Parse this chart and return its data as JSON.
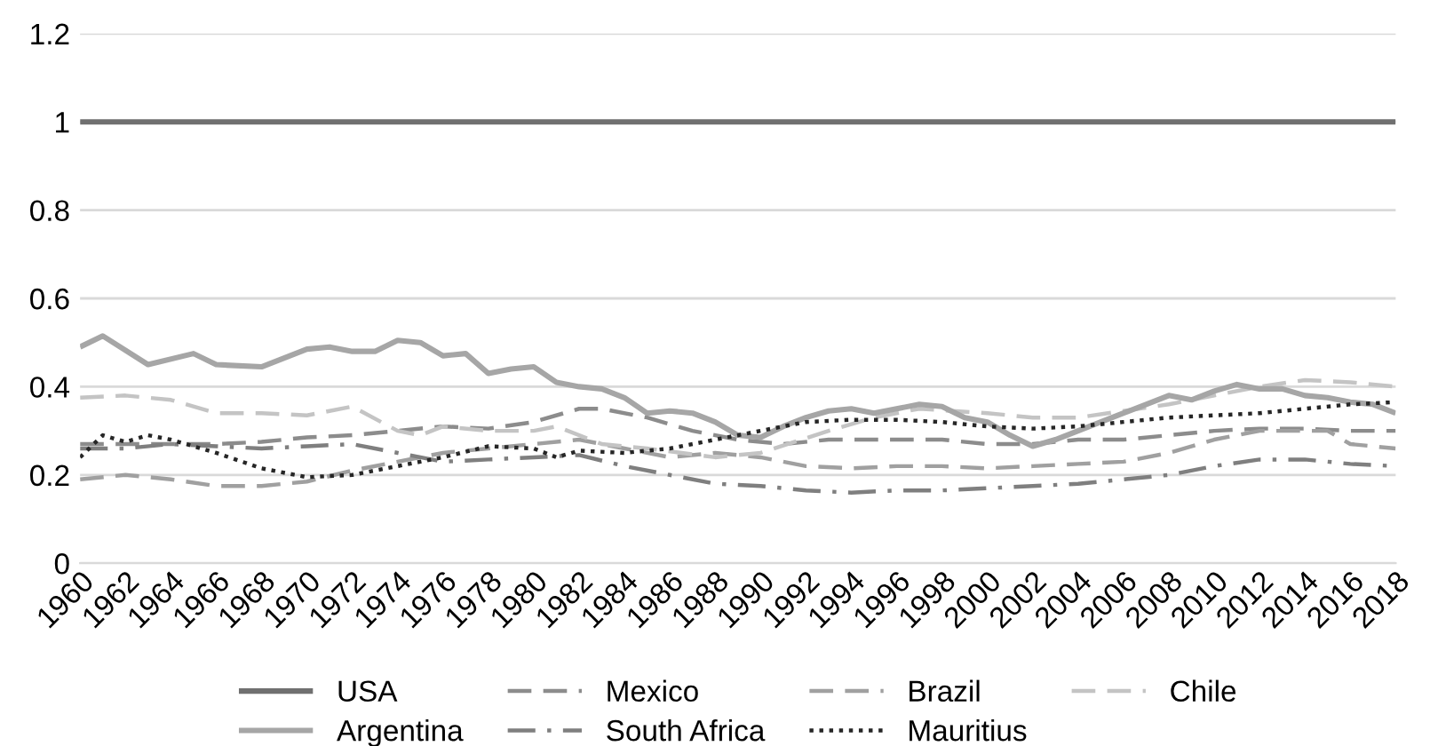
{
  "chart_data": {
    "type": "line",
    "xlim": [
      1960,
      2018
    ],
    "xticks": [
      1960,
      1962,
      1964,
      1966,
      1968,
      1970,
      1972,
      1974,
      1976,
      1978,
      1980,
      1982,
      1984,
      1986,
      1988,
      1990,
      1992,
      1994,
      1996,
      1998,
      2000,
      2002,
      2004,
      2006,
      2008,
      2010,
      2012,
      2014,
      2016,
      2018
    ],
    "ylim": [
      0,
      1.2
    ],
    "yticks": [
      0,
      0.2,
      0.4,
      0.6,
      0.8,
      1,
      1.2
    ],
    "grid": "y",
    "legend": "bottom",
    "marker": "none",
    "series": [
      {
        "name": "USA",
        "color": "#707070",
        "line_style": "solid",
        "x": [
          1960,
          2018
        ],
        "values": [
          1,
          1
        ]
      },
      {
        "name": "Mexico",
        "color": "#8c8c8c",
        "line_style": "dashed",
        "x": [
          1960,
          1964,
          1966,
          1968,
          1970,
          1972,
          1974,
          1976,
          1978,
          1980,
          1982,
          1983,
          1985,
          1987,
          1989,
          1991,
          1993,
          1995,
          1998,
          2000,
          2002,
          2004,
          2006,
          2008,
          2010,
          2012,
          2014,
          2016,
          2018
        ],
        "values": [
          0.27,
          0.27,
          0.27,
          0.275,
          0.285,
          0.29,
          0.3,
          0.31,
          0.305,
          0.32,
          0.35,
          0.35,
          0.33,
          0.3,
          0.28,
          0.27,
          0.28,
          0.28,
          0.28,
          0.27,
          0.27,
          0.28,
          0.28,
          0.29,
          0.3,
          0.305,
          0.305,
          0.3,
          0.3
        ]
      },
      {
        "name": "Brazil",
        "color": "#a0a0a0",
        "line_style": "dashed",
        "x": [
          1960,
          1962,
          1964,
          1966,
          1968,
          1970,
          1972,
          1974,
          1976,
          1978,
          1980,
          1982,
          1984,
          1986,
          1988,
          1990,
          1992,
          1994,
          1996,
          1998,
          2000,
          2002,
          2004,
          2006,
          2008,
          2010,
          2012,
          2014,
          2015,
          2016,
          2018
        ],
        "values": [
          0.19,
          0.2,
          0.19,
          0.175,
          0.175,
          0.185,
          0.21,
          0.23,
          0.25,
          0.26,
          0.27,
          0.28,
          0.26,
          0.24,
          0.25,
          0.24,
          0.22,
          0.215,
          0.22,
          0.22,
          0.215,
          0.22,
          0.225,
          0.23,
          0.25,
          0.28,
          0.3,
          0.3,
          0.3,
          0.27,
          0.26
        ]
      },
      {
        "name": "Chile",
        "color": "#c4c4c4",
        "line_style": "dashed",
        "x": [
          1960,
          1962,
          1964,
          1966,
          1968,
          1970,
          1972,
          1974,
          1975,
          1976,
          1978,
          1980,
          1981,
          1983,
          1985,
          1988,
          1990,
          1993,
          1995,
          1997,
          2000,
          2002,
          2004,
          2006,
          2008,
          2010,
          2012,
          2014,
          2016,
          2018
        ],
        "values": [
          0.375,
          0.38,
          0.37,
          0.34,
          0.34,
          0.335,
          0.355,
          0.3,
          0.29,
          0.31,
          0.3,
          0.3,
          0.31,
          0.27,
          0.26,
          0.24,
          0.25,
          0.3,
          0.33,
          0.35,
          0.34,
          0.33,
          0.33,
          0.345,
          0.36,
          0.38,
          0.4,
          0.415,
          0.41,
          0.4
        ]
      },
      {
        "name": "Argentina",
        "color": "#a6a6a6",
        "line_style": "solid",
        "x": [
          1960,
          1961,
          1963,
          1965,
          1966,
          1968,
          1970,
          1971,
          1972,
          1973,
          1974,
          1975,
          1976,
          1977,
          1978,
          1979,
          1980,
          1981,
          1982,
          1983,
          1984,
          1985,
          1986,
          1987,
          1988,
          1989,
          1990,
          1991,
          1992,
          1993,
          1994,
          1995,
          1996,
          1997,
          1998,
          1999,
          2000,
          2001,
          2002,
          2003,
          2004,
          2005,
          2006,
          2007,
          2008,
          2009,
          2010,
          2011,
          2012,
          2013,
          2014,
          2015,
          2016,
          2017,
          2018
        ],
        "values": [
          0.49,
          0.515,
          0.45,
          0.475,
          0.45,
          0.445,
          0.485,
          0.49,
          0.48,
          0.48,
          0.505,
          0.5,
          0.47,
          0.475,
          0.43,
          0.44,
          0.445,
          0.41,
          0.4,
          0.395,
          0.375,
          0.34,
          0.345,
          0.34,
          0.32,
          0.29,
          0.285,
          0.31,
          0.33,
          0.345,
          0.35,
          0.34,
          0.35,
          0.36,
          0.355,
          0.33,
          0.32,
          0.29,
          0.265,
          0.28,
          0.3,
          0.32,
          0.34,
          0.36,
          0.38,
          0.37,
          0.39,
          0.405,
          0.395,
          0.395,
          0.38,
          0.375,
          0.365,
          0.36,
          0.34
        ]
      },
      {
        "name": "South Africa",
        "color": "#7f7f7f",
        "line_style": "dashdot",
        "x": [
          1960,
          1962,
          1964,
          1966,
          1968,
          1970,
          1972,
          1974,
          1976,
          1978,
          1980,
          1982,
          1984,
          1986,
          1988,
          1990,
          1992,
          1994,
          1996,
          1998,
          2000,
          2002,
          2004,
          2006,
          2008,
          2010,
          2012,
          2014,
          2016,
          2018
        ],
        "values": [
          0.26,
          0.26,
          0.27,
          0.265,
          0.26,
          0.265,
          0.27,
          0.25,
          0.23,
          0.235,
          0.24,
          0.245,
          0.22,
          0.2,
          0.18,
          0.175,
          0.165,
          0.16,
          0.165,
          0.165,
          0.17,
          0.175,
          0.18,
          0.19,
          0.2,
          0.22,
          0.235,
          0.235,
          0.225,
          0.22
        ]
      },
      {
        "name": "Mauritius",
        "color": "#262626",
        "line_style": "dotted",
        "x": [
          1960,
          1961,
          1962,
          1963,
          1964,
          1966,
          1968,
          1970,
          1972,
          1974,
          1976,
          1978,
          1980,
          1981,
          1982,
          1984,
          1986,
          1988,
          1990,
          1992,
          1994,
          1996,
          1998,
          2000,
          2002,
          2004,
          2006,
          2008,
          2010,
          2012,
          2014,
          2016,
          2018
        ],
        "values": [
          0.24,
          0.29,
          0.275,
          0.29,
          0.28,
          0.25,
          0.215,
          0.195,
          0.2,
          0.22,
          0.24,
          0.265,
          0.26,
          0.24,
          0.255,
          0.25,
          0.26,
          0.28,
          0.3,
          0.32,
          0.325,
          0.325,
          0.32,
          0.31,
          0.305,
          0.31,
          0.32,
          0.33,
          0.335,
          0.34,
          0.35,
          0.36,
          0.365
        ]
      }
    ]
  }
}
